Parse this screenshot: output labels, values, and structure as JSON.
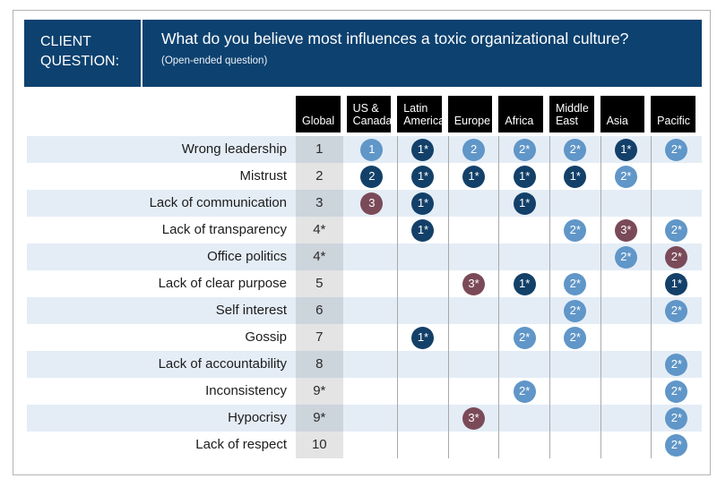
{
  "titlebar": {
    "client_label": "CLIENT QUESTION:",
    "question": "What do you believe most influences a toxic organizational culture?",
    "subtitle": "(Open-ended question)"
  },
  "chart_data": {
    "type": "table",
    "title": "What do you believe most influences a toxic organizational culture?",
    "subtitle": "(Open-ended question)",
    "columns": [
      "Global",
      "US &\nCanada",
      "Latin\nAmerica",
      "Europe",
      "Africa",
      "Middle\nEast",
      "Asia",
      "Pacific"
    ],
    "rows": [
      {
        "label": "Wrong leadership",
        "global": "1",
        "cells": [
          {
            "value": "1",
            "color": "light"
          },
          {
            "value": "1*",
            "color": "dark"
          },
          {
            "value": "2",
            "color": "light"
          },
          {
            "value": "2*",
            "color": "light"
          },
          {
            "value": "2*",
            "color": "light"
          },
          {
            "value": "1*",
            "color": "dark"
          },
          {
            "value": "2*",
            "color": "light"
          }
        ]
      },
      {
        "label": "Mistrust",
        "global": "2",
        "cells": [
          {
            "value": "2",
            "color": "dark"
          },
          {
            "value": "1*",
            "color": "dark"
          },
          {
            "value": "1*",
            "color": "dark"
          },
          {
            "value": "1*",
            "color": "dark"
          },
          {
            "value": "1*",
            "color": "dark"
          },
          {
            "value": "2*",
            "color": "light"
          },
          null
        ]
      },
      {
        "label": "Lack of communication",
        "global": "3",
        "cells": [
          {
            "value": "3",
            "color": "maroon"
          },
          {
            "value": "1*",
            "color": "dark"
          },
          null,
          {
            "value": "1*",
            "color": "dark"
          },
          null,
          null,
          null
        ]
      },
      {
        "label": "Lack of transparency",
        "global": "4*",
        "cells": [
          null,
          {
            "value": "1*",
            "color": "dark"
          },
          null,
          null,
          {
            "value": "2*",
            "color": "light"
          },
          {
            "value": "3*",
            "color": "maroon"
          },
          {
            "value": "2*",
            "color": "light"
          }
        ]
      },
      {
        "label": "Office politics",
        "global": "4*",
        "cells": [
          null,
          null,
          null,
          null,
          null,
          {
            "value": "2*",
            "color": "light"
          },
          {
            "value": "2*",
            "color": "maroon"
          }
        ]
      },
      {
        "label": "Lack of clear purpose",
        "global": "5",
        "cells": [
          null,
          null,
          {
            "value": "3*",
            "color": "maroon"
          },
          {
            "value": "1*",
            "color": "dark"
          },
          {
            "value": "2*",
            "color": "light"
          },
          null,
          {
            "value": "1*",
            "color": "dark"
          }
        ]
      },
      {
        "label": "Self interest",
        "global": "6",
        "cells": [
          null,
          null,
          null,
          null,
          {
            "value": "2*",
            "color": "light"
          },
          null,
          {
            "value": "2*",
            "color": "light"
          }
        ]
      },
      {
        "label": "Gossip",
        "global": "7",
        "cells": [
          null,
          {
            "value": "1*",
            "color": "dark"
          },
          null,
          {
            "value": "2*",
            "color": "light"
          },
          {
            "value": "2*",
            "color": "light"
          },
          null,
          null
        ]
      },
      {
        "label": "Lack of accountability",
        "global": "8",
        "cells": [
          null,
          null,
          null,
          null,
          null,
          null,
          {
            "value": "2*",
            "color": "light"
          }
        ]
      },
      {
        "label": "Inconsistency",
        "global": "9*",
        "cells": [
          null,
          null,
          null,
          {
            "value": "2*",
            "color": "light"
          },
          null,
          null,
          {
            "value": "2*",
            "color": "light"
          }
        ]
      },
      {
        "label": "Hypocrisy",
        "global": "9*",
        "cells": [
          null,
          null,
          {
            "value": "3*",
            "color": "maroon"
          },
          null,
          null,
          null,
          {
            "value": "2*",
            "color": "light"
          }
        ]
      },
      {
        "label": "Lack of respect",
        "global": "10",
        "cells": [
          null,
          null,
          null,
          null,
          null,
          null,
          {
            "value": "2*",
            "color": "light"
          }
        ]
      }
    ],
    "layout": {
      "row_striping": "alternate rows light blue starting with first row",
      "global_column_background": "gray",
      "legend_position": "none"
    }
  },
  "colors": {
    "titlebar_navy": "#0d416f",
    "column_header_bg": "#000000",
    "row_stripe": "#e4edf6",
    "global_column_gray": "#e3e3e3",
    "circle_light_blue": "#6096c8",
    "circle_dark_navy": "#134069",
    "circle_maroon": "#7b4a59",
    "column_divider": "#a9a9a9",
    "outer_border": "#b3b3b3"
  }
}
